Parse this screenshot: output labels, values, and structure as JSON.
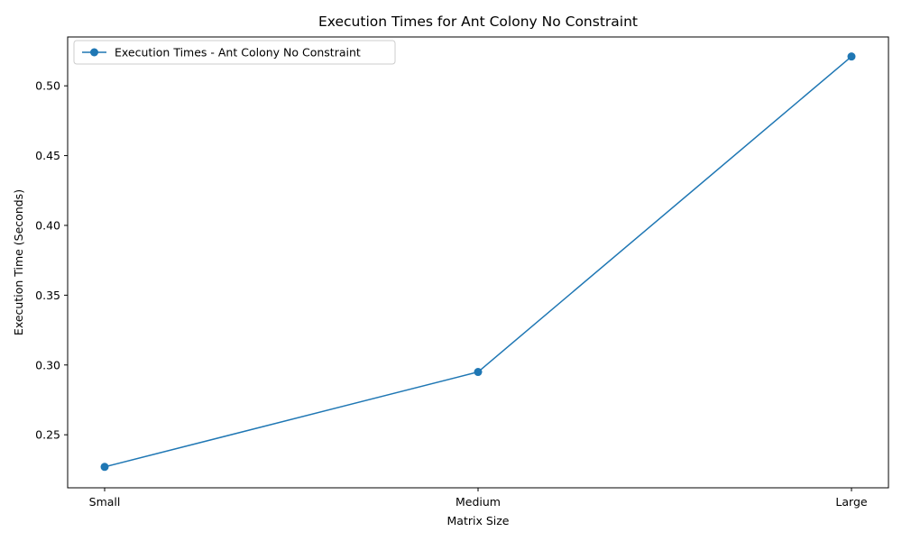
{
  "chart_data": {
    "type": "line",
    "title": "Execution Times for Ant Colony No Constraint",
    "xlabel": "Matrix Size",
    "ylabel": "Execution Time (Seconds)",
    "categories": [
      "Small",
      "Medium",
      "Large"
    ],
    "series": [
      {
        "name": "Execution Times - Ant Colony No Constraint",
        "values": [
          0.227,
          0.295,
          0.521
        ],
        "color": "#1f77b4",
        "marker": "circle"
      }
    ],
    "ylim": [
      0.212,
      0.535
    ],
    "yticks": [
      0.25,
      0.3,
      0.35,
      0.4,
      0.45,
      0.5
    ],
    "ytick_labels": [
      "0.25",
      "0.30",
      "0.35",
      "0.40",
      "0.45",
      "0.50"
    ],
    "grid": false,
    "legend_position": "top-left"
  }
}
